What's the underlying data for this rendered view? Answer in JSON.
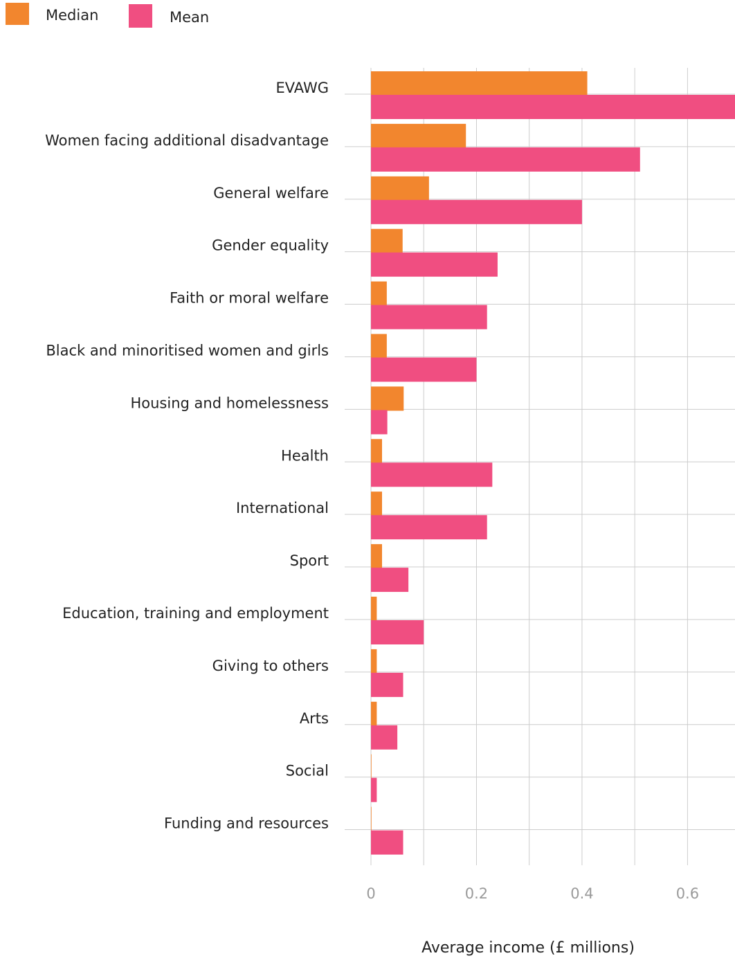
{
  "chart_data": {
    "type": "bar",
    "orientation": "horizontal",
    "categories": [
      "EVAWG",
      "Women facing additional disadvantage",
      "General welfare",
      "Gender equality",
      "Faith or moral welfare",
      "Black and minoritised women and girls",
      "Housing and homelessness",
      "Health",
      "International",
      "Sport",
      "Education, training and employment",
      "Giving to others",
      "Arts",
      "Social",
      "Funding and resources"
    ],
    "series": [
      {
        "name": "Median",
        "color": "#f2862e",
        "values": [
          0.41,
          0.18,
          0.11,
          0.06,
          0.03,
          0.03,
          0.062,
          0.021,
          0.021,
          0.021,
          0.011,
          0.011,
          0.011,
          0.001,
          0.001
        ]
      },
      {
        "name": "Mean",
        "color": "#f04e81",
        "values": [
          0.69,
          0.51,
          0.4,
          0.24,
          0.22,
          0.2,
          0.031,
          0.23,
          0.22,
          0.071,
          0.1,
          0.061,
          0.05,
          0.011,
          0.061
        ]
      }
    ],
    "xlabel": "Average income (£ millions)",
    "ylabel": "",
    "xlim": [
      0,
      0.69
    ],
    "x_ticks": [
      0,
      0.2,
      0.4,
      0.6
    ],
    "x_tick_labels": [
      "0",
      "0.2",
      "0.4",
      "0.6"
    ],
    "grid": true,
    "legend": "top-left",
    "grid_color": "#cccccc",
    "tick_label_color": "#9a9a9a"
  }
}
